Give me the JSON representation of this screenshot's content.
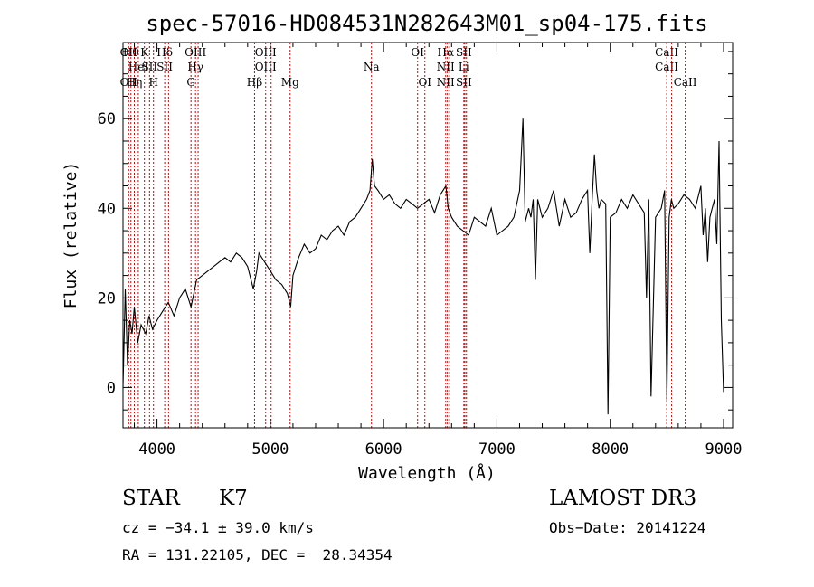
{
  "chart_data": {
    "type": "line",
    "title": "spec-57016-HD084531N282643M01_sp04-175.fits",
    "xlabel": "Wavelength (Å)",
    "ylabel": "Flux (relative)",
    "xlim": [
      3700,
      9080
    ],
    "ylim": [
      -9,
      77
    ],
    "xticks": [
      4000,
      5000,
      6000,
      7000,
      8000,
      9000
    ],
    "yticks": [
      0,
      20,
      40,
      60
    ],
    "grid": false,
    "line_color": "#000000",
    "marker_color": "#cc0000",
    "series": [
      {
        "name": "flux",
        "x": [
          3700,
          3720,
          3740,
          3760,
          3780,
          3800,
          3830,
          3860,
          3900,
          3930,
          3960,
          4000,
          4050,
          4100,
          4150,
          4200,
          4250,
          4300,
          4350,
          4400,
          4450,
          4500,
          4550,
          4600,
          4650,
          4700,
          4750,
          4800,
          4850,
          4880,
          4900,
          4950,
          5000,
          5050,
          5100,
          5150,
          5180,
          5200,
          5250,
          5300,
          5350,
          5400,
          5450,
          5500,
          5550,
          5600,
          5650,
          5700,
          5750,
          5800,
          5850,
          5880,
          5900,
          5920,
          5950,
          6000,
          6050,
          6100,
          6150,
          6200,
          6250,
          6300,
          6350,
          6400,
          6450,
          6500,
          6550,
          6570,
          6600,
          6650,
          6700,
          6750,
          6800,
          6850,
          6900,
          6950,
          7000,
          7050,
          7100,
          7150,
          7200,
          7230,
          7250,
          7280,
          7300,
          7320,
          7340,
          7360,
          7400,
          7450,
          7500,
          7550,
          7600,
          7650,
          7700,
          7750,
          7800,
          7820,
          7840,
          7860,
          7880,
          7900,
          7920,
          7960,
          7980,
          8000,
          8050,
          8100,
          8150,
          8200,
          8250,
          8300,
          8320,
          8340,
          8360,
          8400,
          8450,
          8480,
          8500,
          8520,
          8540,
          8560,
          8600,
          8650,
          8700,
          8750,
          8800,
          8820,
          8840,
          8860,
          8880,
          8900,
          8920,
          8940,
          8960,
          8980,
          9000
        ],
        "y": [
          0,
          22,
          5,
          15,
          12,
          18,
          10,
          14,
          12,
          16,
          13,
          15,
          17,
          19,
          16,
          20,
          22,
          18,
          24,
          25,
          26,
          27,
          28,
          29,
          28,
          30,
          29,
          27,
          22,
          26,
          30,
          28,
          26,
          24,
          23,
          21,
          18,
          25,
          29,
          32,
          30,
          31,
          34,
          33,
          35,
          36,
          34,
          37,
          38,
          40,
          42,
          44,
          51,
          45,
          44,
          42,
          43,
          41,
          40,
          42,
          41,
          40,
          41,
          42,
          39,
          43,
          45,
          40,
          38,
          36,
          35,
          34,
          38,
          37,
          36,
          40,
          34,
          35,
          36,
          38,
          44,
          60,
          37,
          40,
          38,
          42,
          24,
          42,
          38,
          40,
          44,
          36,
          42,
          38,
          39,
          42,
          44,
          30,
          42,
          52,
          44,
          40,
          42,
          41,
          -6,
          38,
          39,
          42,
          40,
          43,
          41,
          39,
          20,
          42,
          -2,
          38,
          40,
          44,
          -3,
          38,
          42,
          40,
          41,
          43,
          42,
          40,
          45,
          34,
          40,
          28,
          38,
          40,
          42,
          32,
          55,
          15,
          -1
        ]
      }
    ],
    "line_markers": [
      {
        "w": 3750,
        "top": "OII",
        "mid": "",
        "low": "OII"
      },
      {
        "w": 3770,
        "top": "Hθ",
        "mid": "",
        "low": ""
      },
      {
        "w": 3800,
        "top": "",
        "mid": "",
        "low": "Hη"
      },
      {
        "w": 3835,
        "top": "",
        "mid": "HeI",
        "low": ""
      },
      {
        "w": 3889,
        "top": "K",
        "mid": "",
        "low": ""
      },
      {
        "w": 3934,
        "top": "",
        "mid": "SII",
        "low": ""
      },
      {
        "w": 3969,
        "top": "",
        "mid": "",
        "low": "H"
      },
      {
        "w": 4068,
        "top": "Hδ",
        "mid": "SII",
        "low": ""
      },
      {
        "w": 4102,
        "top": "",
        "mid": "",
        "low": ""
      },
      {
        "w": 4300,
        "top": "",
        "mid": "",
        "low": "G"
      },
      {
        "w": 4340,
        "top": "OIII",
        "mid": "Hγ",
        "low": ""
      },
      {
        "w": 4363,
        "top": "",
        "mid": "",
        "low": ""
      },
      {
        "w": 4861,
        "top": "",
        "mid": "",
        "low": "Hβ"
      },
      {
        "w": 4959,
        "top": "OIII",
        "mid": "OIII",
        "low": ""
      },
      {
        "w": 5007,
        "top": "",
        "mid": "",
        "low": ""
      },
      {
        "w": 5175,
        "top": "",
        "mid": "",
        "low": "Mg"
      },
      {
        "w": 5893,
        "top": "",
        "mid": "Na",
        "low": ""
      },
      {
        "w": 6300,
        "top": "OI",
        "mid": "",
        "low": ""
      },
      {
        "w": 6364,
        "top": "",
        "mid": "",
        "low": "OI"
      },
      {
        "w": 6548,
        "top": "Hα",
        "mid": "NII",
        "low": "NII"
      },
      {
        "w": 6563,
        "top": "",
        "mid": "",
        "low": ""
      },
      {
        "w": 6583,
        "top": "",
        "mid": "",
        "low": ""
      },
      {
        "w": 6708,
        "top": "SII",
        "mid": "Li",
        "low": "SII"
      },
      {
        "w": 6717,
        "top": "",
        "mid": "",
        "low": ""
      },
      {
        "w": 6731,
        "top": "",
        "mid": "",
        "low": ""
      },
      {
        "w": 8498,
        "top": "CaII",
        "mid": "CaII",
        "low": ""
      },
      {
        "w": 8542,
        "top": "",
        "mid": "",
        "low": ""
      },
      {
        "w": 8662,
        "top": "",
        "mid": "",
        "low": "CaII"
      }
    ]
  },
  "info": {
    "object_class": "STAR",
    "subclass": "K7",
    "survey": "LAMOST DR3",
    "cz": "cz = −34.1 ± 39.0 km/s",
    "obs_date": "Obs−Date: 20141224",
    "coords": "RA = 131.22105, DEC =  28.34354"
  }
}
